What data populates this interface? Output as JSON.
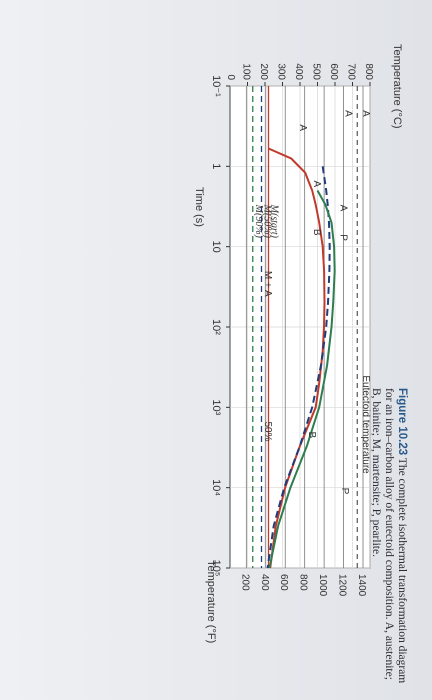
{
  "chart_data": {
    "type": "line",
    "title": "",
    "xlabel": "Time (s)",
    "ylabel_left": "Temperature (°C)",
    "ylabel_right": "Temperature (°F)",
    "x_log_scale": true,
    "xlim": [
      0.1,
      100000
    ],
    "ylim": [
      0,
      800
    ],
    "x_ticks": [
      0.1,
      1,
      10,
      100,
      1000,
      10000,
      100000
    ],
    "x_tick_labels": [
      "10⁻¹",
      "1",
      "10",
      "10²",
      "10³",
      "10⁴",
      "10⁵"
    ],
    "y_zero_label": "0",
    "y_ticks": [
      100,
      200,
      300,
      400,
      500,
      600,
      700,
      800
    ],
    "y_tick_labels": [
      "100",
      "200",
      "300",
      "400",
      "500",
      "600",
      "700",
      "800"
    ],
    "f_ticks_celsius": [
      93.3,
      204.4,
      315.6,
      426.7,
      537.8,
      648.9,
      760.0
    ],
    "f_tick_labels": [
      "200",
      "400",
      "600",
      "800",
      "1000",
      "1200",
      "1400"
    ],
    "eutectoid_temperature": 727,
    "series": [
      {
        "role": "start",
        "color": "#c0392b",
        "dash": false,
        "x": [
          0.6,
          0.8,
          1.2,
          2,
          3,
          5,
          10,
          20,
          50,
          100,
          200,
          500,
          1000,
          3000,
          10000,
          30000,
          100000
        ],
        "y": [
          220,
          350,
          430,
          470,
          490,
          510,
          530,
          538,
          540,
          537,
          530,
          510,
          490,
          400,
          315,
          262,
          230
        ]
      },
      {
        "role": "50pct",
        "color": "#1f3d7a",
        "dash": true,
        "x": [
          1,
          2,
          3,
          5,
          10,
          20,
          50,
          100,
          300,
          1000,
          3000,
          10000,
          30000,
          100000
        ],
        "y": [
          530,
          550,
          558,
          566,
          570,
          568,
          560,
          550,
          520,
          470,
          400,
          310,
          250,
          215
        ]
      },
      {
        "role": "end",
        "color": "#2e7d4f",
        "dash": false,
        "x": [
          2,
          3,
          5,
          10,
          20,
          50,
          100,
          300,
          1000,
          3000,
          10000,
          30000,
          70000,
          100000
        ],
        "y": [
          500,
          545,
          580,
          595,
          598,
          590,
          580,
          555,
          510,
          440,
          345,
          275,
          240,
          225
        ]
      }
    ],
    "martensite_lines": [
      {
        "label": "M(start)",
        "y": 220,
        "color": "#c0392b"
      },
      {
        "label": "M(50%)",
        "y": 180,
        "color": "#1f3d7a"
      },
      {
        "label": "M(90%)",
        "y": 130,
        "color": "#2e7d4f"
      }
    ],
    "annotations": [
      {
        "text": "Eutectoid temperature",
        "x": 400,
        "y": 760
      },
      {
        "text": "A",
        "x": 0.2,
        "y": 760
      },
      {
        "text": "A",
        "x": 0.2,
        "y": 660
      },
      {
        "text": "A",
        "x": 0.3,
        "y": 400
      },
      {
        "text": "P",
        "x": 10000,
        "y": 640
      },
      {
        "text": "A",
        "x": 3,
        "y": 630
      },
      {
        "text": "P",
        "x": 7,
        "y": 630
      },
      {
        "text": "A",
        "x": 1.5,
        "y": 480
      },
      {
        "text": "B",
        "x": 6,
        "y": 480
      },
      {
        "text": "B",
        "x": 2000,
        "y": 450
      },
      {
        "text": "M + A",
        "x": 20,
        "y": 200
      },
      {
        "text": "50%",
        "x": 1500,
        "y": 200
      }
    ]
  },
  "caption": {
    "figure_label": "Figure 10.23",
    "text": "The complete isothermal transformation diagram for an iron–carbon alloy of eutectoid composition. A, austenite; B, bainite; M, martensite; P, pearlite."
  }
}
